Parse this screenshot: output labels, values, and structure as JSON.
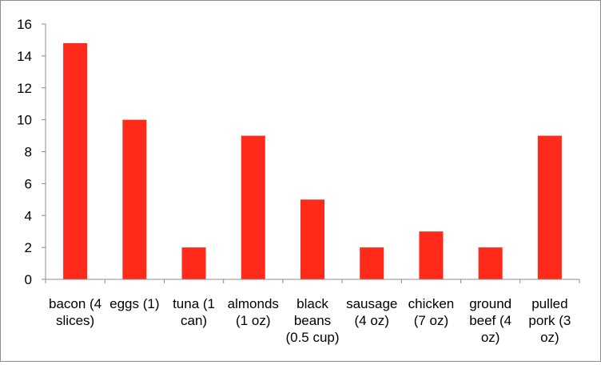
{
  "chart_data": {
    "type": "bar",
    "title": "",
    "xlabel": "",
    "ylabel": "",
    "ylim": [
      0,
      16
    ],
    "yticks": [
      0,
      2,
      4,
      6,
      8,
      10,
      12,
      14,
      16
    ],
    "grid": false,
    "legend": "none",
    "bar_color": "#ff2a1a",
    "categories": [
      [
        "bacon (4",
        "slices)"
      ],
      [
        "eggs (1)"
      ],
      [
        "tuna (1",
        "can)"
      ],
      [
        "almonds",
        "(1 oz)"
      ],
      [
        "black",
        "beans",
        "(0.5 cup)"
      ],
      [
        "sausage",
        "(4 oz)"
      ],
      [
        "chicken",
        "(7 oz)"
      ],
      [
        "ground",
        "beef (4",
        "oz)"
      ],
      [
        "pulled",
        "pork (3",
        "oz)"
      ]
    ],
    "values": [
      14.8,
      10,
      2,
      9,
      5,
      2,
      3,
      2,
      9
    ]
  }
}
